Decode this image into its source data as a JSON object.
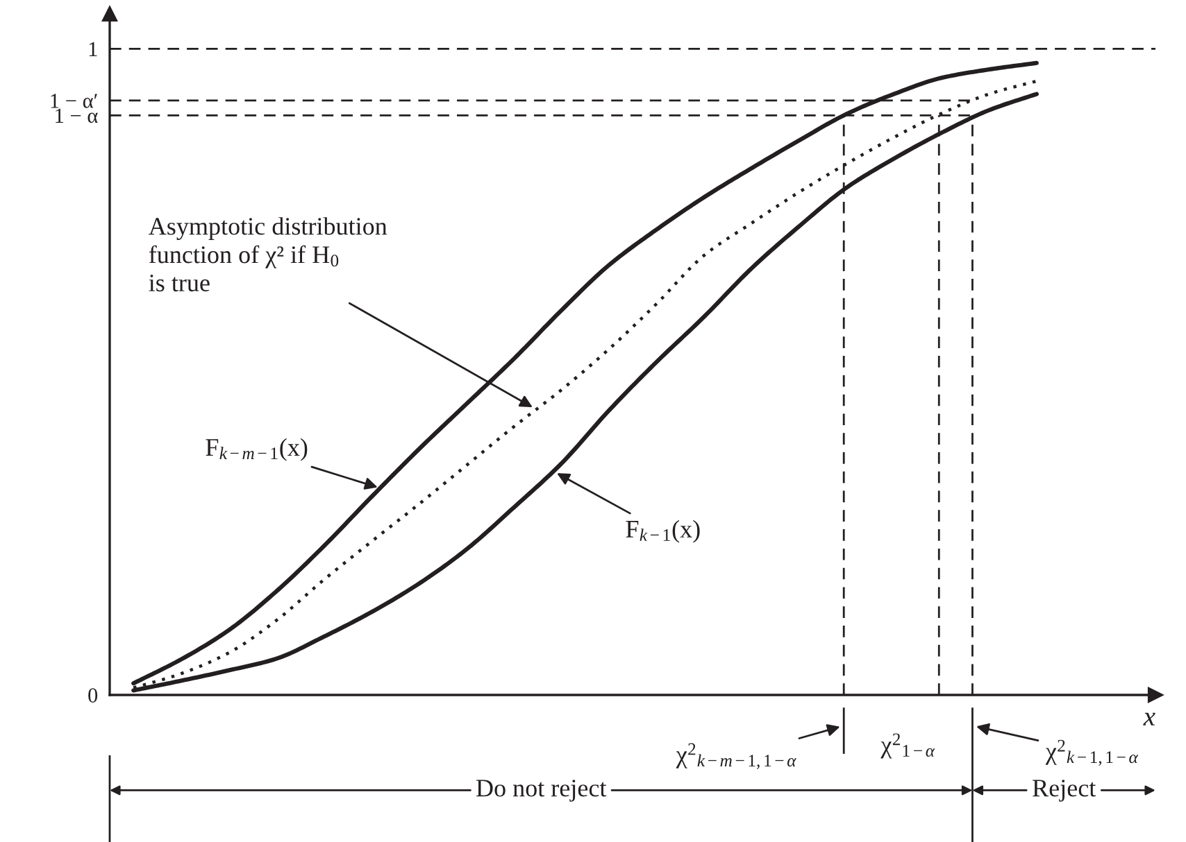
{
  "chart_data": {
    "type": "line",
    "xlabel": "x",
    "categories": [
      null,
      null,
      null,
      null,
      null,
      null,
      null,
      null,
      null,
      null,
      null,
      null,
      null,
      null,
      null,
      null,
      null,
      null,
      null,
      null
    ],
    "series": [
      {
        "color": "#231f20",
        "line_style": "solid",
        "values": [
          0.018,
          0.055,
          0.1,
          0.16,
          0.23,
          0.306,
          0.38,
          0.45,
          0.52,
          0.595,
          0.665,
          0.72,
          0.77,
          0.815,
          0.858,
          0.899,
          0.93,
          0.955,
          0.968,
          0.978
        ]
      },
      {
        "color": "#231f20",
        "line_style": "dotted",
        "values": [
          0.011,
          0.033,
          0.065,
          0.115,
          0.178,
          0.237,
          0.295,
          0.355,
          0.415,
          0.472,
          0.535,
          0.605,
          0.68,
          0.73,
          0.778,
          0.822,
          0.863,
          0.9,
          0.93,
          0.95
        ]
      },
      {
        "color": "#231f20",
        "line_style": "solid",
        "values": [
          0.007,
          0.022,
          0.038,
          0.056,
          0.09,
          0.128,
          0.172,
          0.225,
          0.29,
          0.358,
          0.44,
          0.515,
          0.585,
          0.66,
          0.725,
          0.785,
          0.83,
          0.87,
          0.905,
          0.93
        ]
      }
    ],
    "ylim": [
      0,
      1.054
    ],
    "yticks": [
      0,
      {
        "value": 0.897,
        "label": "1 − α"
      },
      {
        "value": 0.92,
        "label": "1 − α′"
      },
      1
    ],
    "tick_labels": "y",
    "ref_lines": [
      {
        "axis": "y",
        "value": 1,
        "line_style": "dashed"
      },
      {
        "axis": "y",
        "value": 0.92,
        "line_style": "dashed"
      },
      {
        "axis": "y",
        "value": 0.897,
        "line_style": "dashed"
      }
    ],
    "annotations": [
      "Asymptotic distribution\nfunction of χ² if H$_{0}$\nis true",
      "F$_{k−m−1}$(x)",
      "F$_{k−1}$(x)",
      "χ$^{2}$$_{k−m−1,1−α}$",
      "χ$^{2}$$_{1−α}$",
      "χ$^{2}$$_{k−1,1−α}$",
      "Do not reject",
      "Reject"
    ]
  }
}
